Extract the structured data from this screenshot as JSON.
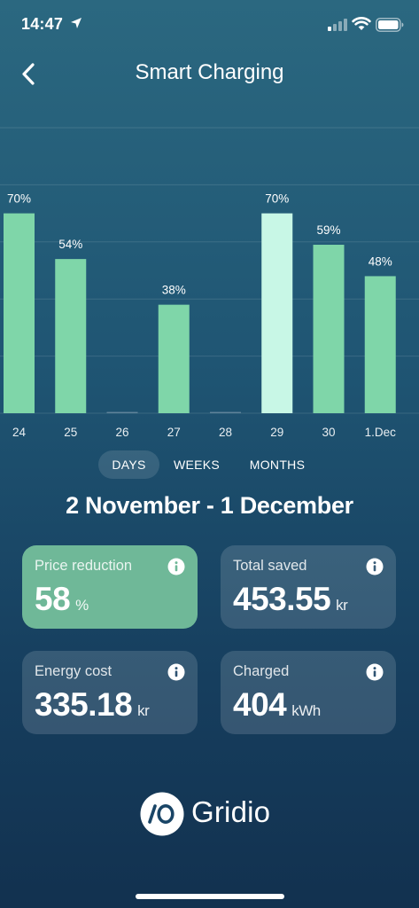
{
  "status_bar": {
    "time": "14:47",
    "icons": [
      "location-arrow-icon",
      "cellular-signal-icon",
      "wifi-icon",
      "battery-icon"
    ]
  },
  "header": {
    "title": "Smart Charging",
    "back_icon": "chevron-left-icon"
  },
  "chart_data": {
    "type": "bar",
    "categories": [
      "24",
      "25",
      "26",
      "27",
      "28",
      "29",
      "30",
      "1.Dec"
    ],
    "values": [
      70,
      54,
      0,
      38,
      0,
      70,
      59,
      48
    ],
    "data_labels": [
      "70%",
      "54%",
      "",
      "38%",
      "",
      "70%",
      "59%",
      "48%"
    ],
    "ylim": [
      0,
      100
    ],
    "highlighted_category": "29",
    "grid": true,
    "colors": {
      "bar": "#7fd6a9",
      "highlight": "#c8f7e6",
      "grid": "rgba(255,255,255,0.12)"
    }
  },
  "period_tabs": [
    {
      "label": "DAYS",
      "active": true
    },
    {
      "label": "WEEKS",
      "active": false
    },
    {
      "label": "MONTHS",
      "active": false
    }
  ],
  "period_title": "2 November - 1 December",
  "stats": [
    {
      "label": "Price reduction",
      "value": "58",
      "unit": "%",
      "highlighted": true,
      "icon": "info-icon"
    },
    {
      "label": "Total saved",
      "value": "453.55",
      "unit": "kr",
      "highlighted": false,
      "icon": "info-icon"
    },
    {
      "label": "Energy cost",
      "value": "335.18",
      "unit": "kr",
      "highlighted": false,
      "icon": "info-icon"
    },
    {
      "label": "Charged",
      "value": "404",
      "unit": "kWh",
      "highlighted": false,
      "icon": "info-icon"
    }
  ],
  "brand": {
    "name": "Gridio",
    "mark_text": "/O",
    "accent": "#6fb898"
  }
}
